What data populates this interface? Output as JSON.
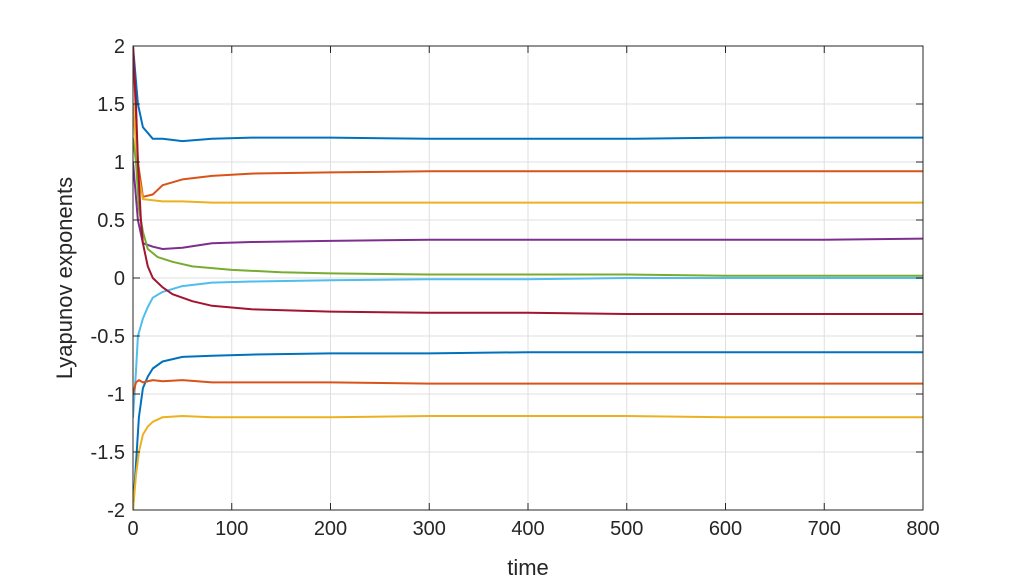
{
  "chart_data": {
    "type": "line",
    "title": "",
    "xlabel": "time",
    "ylabel": "Lyapunov exponents",
    "xlim": [
      0,
      800
    ],
    "ylim": [
      -2,
      2
    ],
    "xticks": [
      0,
      100,
      200,
      300,
      400,
      500,
      600,
      700,
      800
    ],
    "xtick_labels": [
      "0",
      "100",
      "200",
      "300",
      "400",
      "500",
      "600",
      "700",
      "800"
    ],
    "yticks": [
      -2,
      -1.5,
      -1,
      -0.5,
      0,
      0.5,
      1,
      1.5,
      2
    ],
    "ytick_labels": [
      "-2",
      "-1.5",
      "-1",
      "-0.5",
      "0",
      "0.5",
      "1",
      "1.5",
      "2"
    ],
    "grid": true,
    "legend": "none",
    "series": [
      {
        "color": "#0072BD",
        "x": [
          0,
          5,
          10,
          20,
          30,
          50,
          80,
          120,
          200,
          300,
          400,
          500,
          600,
          700,
          800
        ],
        "y": [
          2.0,
          1.5,
          1.3,
          1.2,
          1.2,
          1.18,
          1.2,
          1.21,
          1.21,
          1.2,
          1.2,
          1.2,
          1.21,
          1.21,
          1.21
        ]
      },
      {
        "color": "#D95319",
        "x": [
          0,
          5,
          10,
          20,
          30,
          50,
          80,
          120,
          200,
          300,
          400,
          500,
          600,
          700,
          800
        ],
        "y": [
          2.0,
          1.0,
          0.7,
          0.72,
          0.8,
          0.85,
          0.88,
          0.9,
          0.91,
          0.92,
          0.92,
          0.92,
          0.92,
          0.92,
          0.92
        ]
      },
      {
        "color": "#EDB120",
        "x": [
          0,
          5,
          10,
          20,
          30,
          50,
          80,
          120,
          200,
          300,
          400,
          500,
          600,
          700,
          800
        ],
        "y": [
          1.5,
          0.9,
          0.68,
          0.67,
          0.66,
          0.66,
          0.65,
          0.65,
          0.65,
          0.65,
          0.65,
          0.65,
          0.65,
          0.65,
          0.65
        ]
      },
      {
        "color": "#7E2F8E",
        "x": [
          0,
          5,
          10,
          20,
          30,
          50,
          80,
          120,
          200,
          300,
          400,
          500,
          600,
          700,
          800
        ],
        "y": [
          1.0,
          0.5,
          0.3,
          0.27,
          0.25,
          0.26,
          0.3,
          0.31,
          0.32,
          0.33,
          0.33,
          0.33,
          0.33,
          0.33,
          0.34
        ]
      },
      {
        "color": "#77AC30",
        "x": [
          0,
          3,
          6,
          10,
          15,
          25,
          40,
          60,
          100,
          150,
          200,
          300,
          400,
          500,
          600,
          700,
          800
        ],
        "y": [
          1.2,
          1.0,
          0.6,
          0.4,
          0.25,
          0.18,
          0.14,
          0.1,
          0.07,
          0.05,
          0.04,
          0.03,
          0.03,
          0.03,
          0.02,
          0.02,
          0.02
        ]
      },
      {
        "color": "#4DBEEE",
        "x": [
          0,
          3,
          5,
          10,
          15,
          20,
          30,
          50,
          80,
          120,
          200,
          300,
          400,
          500,
          600,
          700,
          800
        ],
        "y": [
          -1.2,
          -0.8,
          -0.5,
          -0.35,
          -0.25,
          -0.17,
          -0.12,
          -0.07,
          -0.04,
          -0.03,
          -0.02,
          -0.01,
          -0.01,
          0.0,
          0.0,
          0.0,
          0.0
        ]
      },
      {
        "color": "#A2142F",
        "x": [
          0,
          3,
          5,
          8,
          10,
          15,
          20,
          30,
          40,
          60,
          80,
          120,
          200,
          300,
          400,
          500,
          600,
          700,
          800
        ],
        "y": [
          2.0,
          1.5,
          1.0,
          0.5,
          0.3,
          0.1,
          0.0,
          -0.08,
          -0.14,
          -0.2,
          -0.24,
          -0.27,
          -0.29,
          -0.3,
          -0.3,
          -0.31,
          -0.31,
          -0.31,
          -0.31
        ]
      },
      {
        "color": "#0072BD",
        "x": [
          0,
          3,
          6,
          10,
          15,
          20,
          30,
          50,
          80,
          120,
          200,
          300,
          400,
          500,
          600,
          700,
          800
        ],
        "y": [
          -2.0,
          -1.6,
          -1.2,
          -0.95,
          -0.85,
          -0.78,
          -0.72,
          -0.68,
          -0.67,
          -0.66,
          -0.65,
          -0.65,
          -0.64,
          -0.64,
          -0.64,
          -0.64,
          -0.64
        ]
      },
      {
        "color": "#D95319",
        "x": [
          0,
          3,
          6,
          10,
          20,
          30,
          50,
          80,
          120,
          200,
          300,
          400,
          500,
          600,
          700,
          800
        ],
        "y": [
          -1.0,
          -0.9,
          -0.88,
          -0.9,
          -0.88,
          -0.89,
          -0.88,
          -0.9,
          -0.9,
          -0.9,
          -0.91,
          -0.91,
          -0.91,
          -0.91,
          -0.91,
          -0.91
        ]
      },
      {
        "color": "#EDB120",
        "x": [
          0,
          3,
          6,
          10,
          15,
          20,
          30,
          50,
          80,
          120,
          200,
          300,
          400,
          500,
          600,
          700,
          800
        ],
        "y": [
          -2.0,
          -1.7,
          -1.5,
          -1.35,
          -1.28,
          -1.24,
          -1.2,
          -1.19,
          -1.2,
          -1.2,
          -1.2,
          -1.19,
          -1.19,
          -1.19,
          -1.2,
          -1.2,
          -1.2
        ]
      }
    ]
  }
}
